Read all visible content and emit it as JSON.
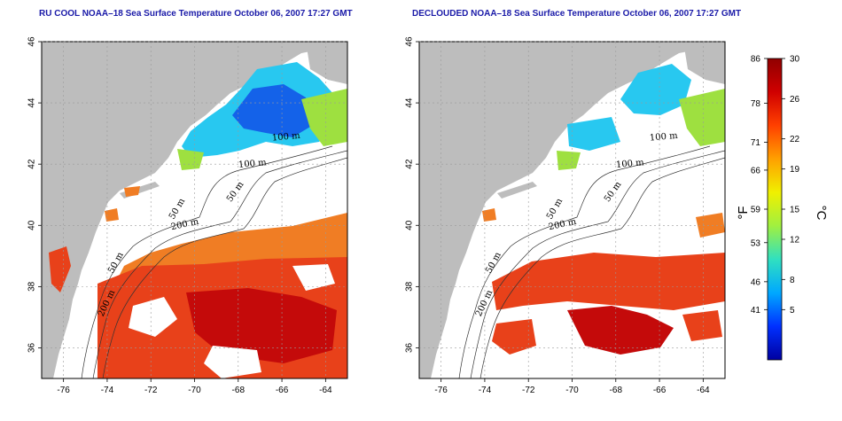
{
  "panels": [
    {
      "title": "RU COOL NOAA–18 Sea Surface Temperature October 06, 2007 17:27 GMT",
      "contour_labels": [
        "100 m",
        "100 m",
        "50 m",
        "200 m",
        "50 m",
        "50 m",
        "200 m"
      ]
    },
    {
      "title": "DECLOUDED NOAA–18 Sea Surface Temperature October 06, 2007 17:27 GMT",
      "contour_labels": [
        "100 m",
        "100 m",
        "50 m",
        "200 m",
        "50 m",
        "50 m",
        "200 m"
      ]
    }
  ],
  "map_axes": {
    "lon_range": [
      -77,
      -63
    ],
    "lat_range": [
      35,
      46
    ],
    "lon_ticks": [
      "-76",
      "-74",
      "-72",
      "-70",
      "-68",
      "-66",
      "-64"
    ],
    "lat_ticks": [
      "36",
      "38",
      "40",
      "42",
      "44",
      "46"
    ]
  },
  "colorbar": {
    "fahrenheit_ticks": [
      "86",
      "78",
      "71",
      "66",
      "59",
      "53",
      "46",
      "41"
    ],
    "celsius_ticks": [
      "30",
      "26",
      "22",
      "19",
      "15",
      "12",
      "8",
      "5"
    ],
    "fahrenheit_unit": "°F",
    "celsius_unit": "°C",
    "colors": [
      "#0000a0",
      "#0030ff",
      "#00a8ff",
      "#30e0c0",
      "#a0f040",
      "#f0f000",
      "#ffa000",
      "#ff4000",
      "#d00000",
      "#900000"
    ]
  },
  "colors": {
    "land": "#bdbdbd",
    "cloud": "#ffffff",
    "title": "#1a1aa8",
    "warm_dark": "#c40a0a",
    "warm": "#e8411a",
    "warm_light": "#f07d24",
    "cool": "#28c8f0",
    "cool_dark": "#1050e8",
    "green": "#9ee040"
  }
}
